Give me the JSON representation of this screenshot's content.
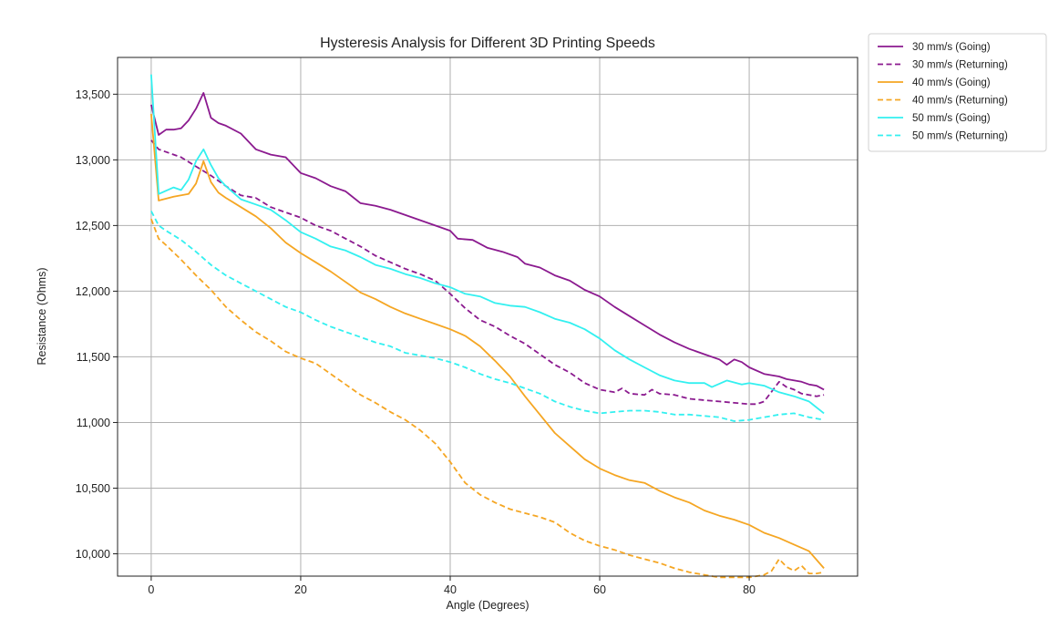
{
  "chart_data": {
    "type": "line",
    "title": "Hysteresis Analysis for Different 3D Printing Speeds",
    "xlabel": "Angle (Degrees)",
    "ylabel": "Resistance (Ohms)",
    "xlim": [
      -4.5,
      94.5
    ],
    "ylim": [
      9830,
      13780
    ],
    "xticks": [
      0,
      20,
      40,
      60,
      80
    ],
    "yticks": [
      10000,
      10500,
      11000,
      11500,
      12000,
      12500,
      13000,
      13500
    ],
    "xtick_labels": [
      "0",
      "20",
      "40",
      "60",
      "80"
    ],
    "ytick_labels": [
      "10,000",
      "10,500",
      "11,000",
      "11,500",
      "12,000",
      "12,500",
      "13,000",
      "13,500"
    ],
    "grid": true,
    "legend_position": "outside-top-right",
    "series": [
      {
        "name": "30 mm/s (Going)",
        "color": "#8b1a8f",
        "dash": "solid",
        "points": [
          [
            0,
            13420
          ],
          [
            1,
            13190
          ],
          [
            2,
            13230
          ],
          [
            3,
            13230
          ],
          [
            4,
            13240
          ],
          [
            5,
            13300
          ],
          [
            6,
            13390
          ],
          [
            7,
            13510
          ],
          [
            8,
            13320
          ],
          [
            9,
            13280
          ],
          [
            10,
            13260
          ],
          [
            12,
            13200
          ],
          [
            14,
            13080
          ],
          [
            16,
            13040
          ],
          [
            18,
            13020
          ],
          [
            20,
            12900
          ],
          [
            22,
            12860
          ],
          [
            24,
            12800
          ],
          [
            26,
            12760
          ],
          [
            28,
            12670
          ],
          [
            30,
            12650
          ],
          [
            32,
            12620
          ],
          [
            34,
            12580
          ],
          [
            36,
            12540
          ],
          [
            38,
            12500
          ],
          [
            40,
            12460
          ],
          [
            41,
            12400
          ],
          [
            43,
            12390
          ],
          [
            45,
            12330
          ],
          [
            47,
            12300
          ],
          [
            49,
            12260
          ],
          [
            50,
            12210
          ],
          [
            52,
            12180
          ],
          [
            54,
            12120
          ],
          [
            56,
            12080
          ],
          [
            58,
            12010
          ],
          [
            60,
            11960
          ],
          [
            62,
            11880
          ],
          [
            64,
            11810
          ],
          [
            66,
            11740
          ],
          [
            68,
            11670
          ],
          [
            70,
            11610
          ],
          [
            72,
            11560
          ],
          [
            74,
            11520
          ],
          [
            76,
            11480
          ],
          [
            77,
            11440
          ],
          [
            78,
            11480
          ],
          [
            79,
            11460
          ],
          [
            80,
            11420
          ],
          [
            82,
            11370
          ],
          [
            84,
            11350
          ],
          [
            85,
            11330
          ],
          [
            87,
            11310
          ],
          [
            88,
            11290
          ],
          [
            89,
            11280
          ],
          [
            90,
            11250
          ]
        ]
      },
      {
        "name": "30 mm/s (Returning)",
        "color": "#8b1a8f",
        "dash": "dashed",
        "points": [
          [
            0,
            13150
          ],
          [
            1,
            13080
          ],
          [
            2,
            13060
          ],
          [
            4,
            13020
          ],
          [
            6,
            12950
          ],
          [
            8,
            12880
          ],
          [
            10,
            12800
          ],
          [
            12,
            12730
          ],
          [
            14,
            12710
          ],
          [
            16,
            12640
          ],
          [
            18,
            12600
          ],
          [
            20,
            12560
          ],
          [
            22,
            12500
          ],
          [
            24,
            12460
          ],
          [
            26,
            12400
          ],
          [
            28,
            12340
          ],
          [
            30,
            12270
          ],
          [
            32,
            12220
          ],
          [
            34,
            12170
          ],
          [
            36,
            12130
          ],
          [
            38,
            12080
          ],
          [
            40,
            11980
          ],
          [
            42,
            11870
          ],
          [
            44,
            11780
          ],
          [
            46,
            11730
          ],
          [
            48,
            11660
          ],
          [
            50,
            11600
          ],
          [
            52,
            11520
          ],
          [
            54,
            11440
          ],
          [
            56,
            11380
          ],
          [
            58,
            11300
          ],
          [
            60,
            11250
          ],
          [
            62,
            11230
          ],
          [
            63,
            11260
          ],
          [
            64,
            11220
          ],
          [
            66,
            11210
          ],
          [
            67,
            11250
          ],
          [
            68,
            11220
          ],
          [
            70,
            11210
          ],
          [
            72,
            11180
          ],
          [
            74,
            11170
          ],
          [
            76,
            11160
          ],
          [
            78,
            11150
          ],
          [
            80,
            11140
          ],
          [
            81,
            11140
          ],
          [
            82,
            11160
          ],
          [
            84,
            11310
          ],
          [
            85,
            11270
          ],
          [
            86,
            11250
          ],
          [
            87,
            11220
          ],
          [
            88,
            11210
          ],
          [
            89,
            11200
          ],
          [
            90,
            11210
          ]
        ]
      },
      {
        "name": "40 mm/s (Going)",
        "color": "#f5a623",
        "dash": "solid",
        "points": [
          [
            0,
            13350
          ],
          [
            1,
            12690
          ],
          [
            3,
            12720
          ],
          [
            5,
            12740
          ],
          [
            6,
            12820
          ],
          [
            7,
            12990
          ],
          [
            8,
            12830
          ],
          [
            9,
            12750
          ],
          [
            10,
            12710
          ],
          [
            12,
            12640
          ],
          [
            14,
            12570
          ],
          [
            16,
            12480
          ],
          [
            18,
            12370
          ],
          [
            20,
            12290
          ],
          [
            22,
            12220
          ],
          [
            24,
            12150
          ],
          [
            26,
            12070
          ],
          [
            28,
            11990
          ],
          [
            30,
            11940
          ],
          [
            32,
            11880
          ],
          [
            34,
            11830
          ],
          [
            36,
            11790
          ],
          [
            38,
            11750
          ],
          [
            40,
            11710
          ],
          [
            42,
            11660
          ],
          [
            44,
            11580
          ],
          [
            46,
            11470
          ],
          [
            48,
            11350
          ],
          [
            50,
            11200
          ],
          [
            52,
            11060
          ],
          [
            54,
            10920
          ],
          [
            56,
            10820
          ],
          [
            58,
            10720
          ],
          [
            60,
            10650
          ],
          [
            62,
            10600
          ],
          [
            64,
            10560
          ],
          [
            66,
            10540
          ],
          [
            68,
            10480
          ],
          [
            70,
            10430
          ],
          [
            72,
            10390
          ],
          [
            74,
            10330
          ],
          [
            76,
            10290
          ],
          [
            78,
            10260
          ],
          [
            80,
            10220
          ],
          [
            82,
            10160
          ],
          [
            84,
            10120
          ],
          [
            86,
            10070
          ],
          [
            88,
            10020
          ],
          [
            90,
            9890
          ]
        ]
      },
      {
        "name": "40 mm/s (Returning)",
        "color": "#f5a623",
        "dash": "dashed",
        "points": [
          [
            0,
            12550
          ],
          [
            1,
            12400
          ],
          [
            2,
            12350
          ],
          [
            4,
            12240
          ],
          [
            6,
            12120
          ],
          [
            8,
            12010
          ],
          [
            10,
            11880
          ],
          [
            12,
            11780
          ],
          [
            14,
            11690
          ],
          [
            16,
            11620
          ],
          [
            18,
            11540
          ],
          [
            20,
            11490
          ],
          [
            22,
            11450
          ],
          [
            24,
            11370
          ],
          [
            26,
            11290
          ],
          [
            28,
            11210
          ],
          [
            30,
            11150
          ],
          [
            32,
            11080
          ],
          [
            34,
            11020
          ],
          [
            36,
            10940
          ],
          [
            38,
            10840
          ],
          [
            40,
            10700
          ],
          [
            42,
            10540
          ],
          [
            44,
            10450
          ],
          [
            46,
            10390
          ],
          [
            48,
            10340
          ],
          [
            50,
            10310
          ],
          [
            52,
            10280
          ],
          [
            54,
            10240
          ],
          [
            56,
            10160
          ],
          [
            58,
            10100
          ],
          [
            60,
            10060
          ],
          [
            62,
            10030
          ],
          [
            64,
            9990
          ],
          [
            66,
            9960
          ],
          [
            68,
            9930
          ],
          [
            70,
            9890
          ],
          [
            72,
            9860
          ],
          [
            74,
            9840
          ],
          [
            76,
            9820
          ],
          [
            78,
            9820
          ],
          [
            80,
            9820
          ],
          [
            82,
            9840
          ],
          [
            83,
            9870
          ],
          [
            84,
            9960
          ],
          [
            85,
            9900
          ],
          [
            86,
            9870
          ],
          [
            87,
            9910
          ],
          [
            88,
            9850
          ],
          [
            89,
            9850
          ],
          [
            90,
            9860
          ]
        ]
      },
      {
        "name": "50 mm/s (Going)",
        "color": "#33f0f0",
        "dash": "solid",
        "points": [
          [
            0,
            13650
          ],
          [
            1,
            12740
          ],
          [
            3,
            12790
          ],
          [
            4,
            12770
          ],
          [
            5,
            12850
          ],
          [
            6,
            12990
          ],
          [
            7,
            13080
          ],
          [
            8,
            12960
          ],
          [
            9,
            12860
          ],
          [
            10,
            12800
          ],
          [
            12,
            12700
          ],
          [
            14,
            12660
          ],
          [
            16,
            12620
          ],
          [
            18,
            12540
          ],
          [
            20,
            12450
          ],
          [
            22,
            12400
          ],
          [
            24,
            12340
          ],
          [
            26,
            12310
          ],
          [
            28,
            12260
          ],
          [
            30,
            12200
          ],
          [
            32,
            12170
          ],
          [
            34,
            12130
          ],
          [
            36,
            12100
          ],
          [
            38,
            12060
          ],
          [
            40,
            12030
          ],
          [
            42,
            11980
          ],
          [
            44,
            11960
          ],
          [
            46,
            11910
          ],
          [
            48,
            11890
          ],
          [
            50,
            11880
          ],
          [
            52,
            11840
          ],
          [
            54,
            11790
          ],
          [
            56,
            11760
          ],
          [
            58,
            11710
          ],
          [
            60,
            11640
          ],
          [
            62,
            11550
          ],
          [
            64,
            11480
          ],
          [
            66,
            11420
          ],
          [
            68,
            11360
          ],
          [
            70,
            11320
          ],
          [
            72,
            11300
          ],
          [
            74,
            11300
          ],
          [
            75,
            11270
          ],
          [
            77,
            11320
          ],
          [
            79,
            11290
          ],
          [
            80,
            11300
          ],
          [
            82,
            11280
          ],
          [
            84,
            11230
          ],
          [
            86,
            11200
          ],
          [
            88,
            11160
          ],
          [
            90,
            11070
          ]
        ]
      },
      {
        "name": "50 mm/s (Returning)",
        "color": "#33f0f0",
        "dash": "dashed",
        "points": [
          [
            0,
            12610
          ],
          [
            1,
            12500
          ],
          [
            2,
            12460
          ],
          [
            4,
            12390
          ],
          [
            6,
            12300
          ],
          [
            8,
            12200
          ],
          [
            10,
            12120
          ],
          [
            12,
            12060
          ],
          [
            14,
            12000
          ],
          [
            16,
            11940
          ],
          [
            18,
            11880
          ],
          [
            20,
            11840
          ],
          [
            22,
            11780
          ],
          [
            24,
            11730
          ],
          [
            26,
            11690
          ],
          [
            28,
            11650
          ],
          [
            30,
            11610
          ],
          [
            32,
            11580
          ],
          [
            34,
            11530
          ],
          [
            36,
            11510
          ],
          [
            38,
            11490
          ],
          [
            40,
            11460
          ],
          [
            42,
            11420
          ],
          [
            44,
            11370
          ],
          [
            46,
            11330
          ],
          [
            48,
            11300
          ],
          [
            50,
            11260
          ],
          [
            52,
            11220
          ],
          [
            54,
            11160
          ],
          [
            56,
            11120
          ],
          [
            58,
            11090
          ],
          [
            60,
            11070
          ],
          [
            62,
            11080
          ],
          [
            64,
            11090
          ],
          [
            66,
            11090
          ],
          [
            68,
            11080
          ],
          [
            70,
            11060
          ],
          [
            72,
            11060
          ],
          [
            74,
            11050
          ],
          [
            76,
            11040
          ],
          [
            78,
            11010
          ],
          [
            80,
            11020
          ],
          [
            82,
            11040
          ],
          [
            84,
            11060
          ],
          [
            86,
            11070
          ],
          [
            88,
            11040
          ],
          [
            90,
            11020
          ]
        ]
      }
    ]
  }
}
